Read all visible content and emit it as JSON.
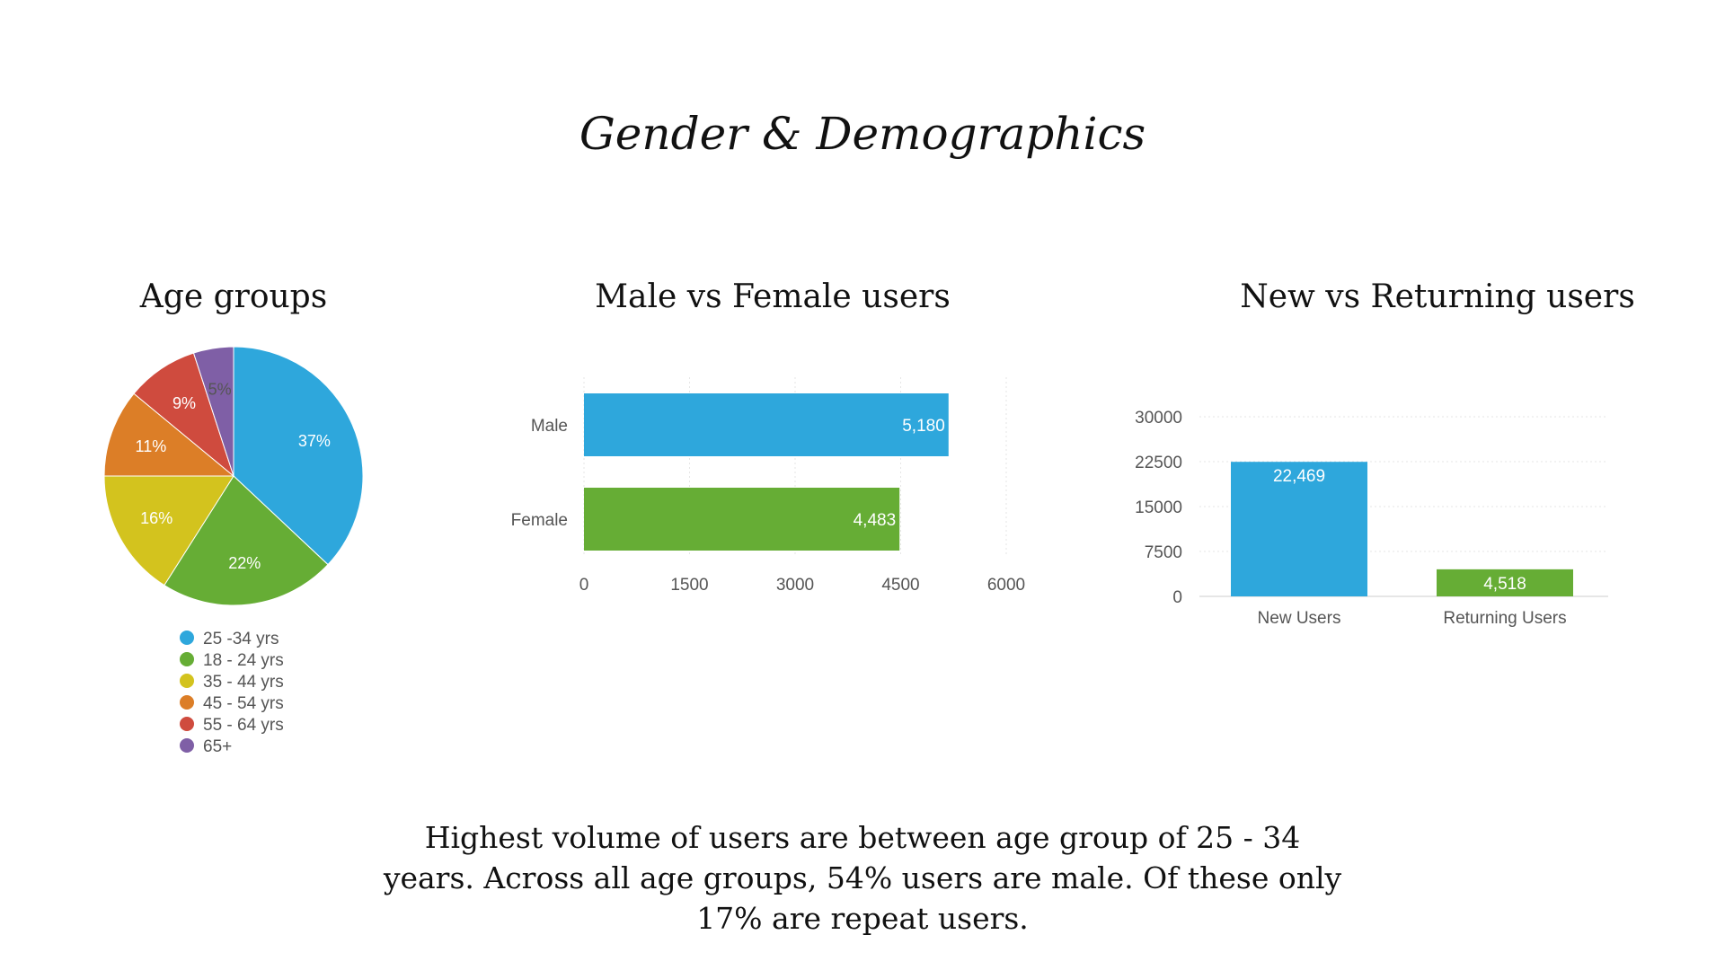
{
  "page": {
    "title": "Gender & Demographics",
    "summary": "Highest volume of users are between age group of 25 - 34 years. Across all age groups, 54% users are male. Of these only 17% are repeat users."
  },
  "colors": {
    "blue": "#2ea7dc",
    "green": "#66ad35",
    "yellow": "#d3c31e",
    "orange": "#dc7e27",
    "red": "#cf4b3e",
    "purple": "#7f5fa6"
  },
  "chart_data": [
    {
      "type": "pie",
      "title": "Age groups",
      "slices": [
        {
          "name": "25 -34 yrs",
          "value": 37,
          "label": "37%",
          "color": "#2ea7dc"
        },
        {
          "name": "18 - 24 yrs",
          "value": 22,
          "label": "22%",
          "color": "#66ad35"
        },
        {
          "name": "35 - 44 yrs",
          "value": 16,
          "label": "16%",
          "color": "#d3c31e"
        },
        {
          "name": "45 - 54 yrs",
          "value": 11,
          "label": "11%",
          "color": "#dc7e27"
        },
        {
          "name": "55 - 64 yrs",
          "value": 9,
          "label": "9%",
          "color": "#cf4b3e"
        },
        {
          "name": "65+",
          "value": 5,
          "label": "5%",
          "color": "#7f5fa6"
        }
      ],
      "legend": "bottom"
    },
    {
      "type": "bar",
      "orientation": "horizontal",
      "title": "Male vs Female users",
      "categories": [
        "Male",
        "Female"
      ],
      "values": [
        5180,
        4483
      ],
      "data_labels": [
        "5,180",
        "4,483"
      ],
      "colors": [
        "#2ea7dc",
        "#66ad35"
      ],
      "xlim": [
        0,
        6000
      ],
      "xticks": [
        "0",
        "1500",
        "3000",
        "4500",
        "6000"
      ],
      "grid": true
    },
    {
      "type": "bar",
      "title": "New vs Returning users",
      "categories": [
        "New Users",
        "Returning Users"
      ],
      "values": [
        22469,
        4518
      ],
      "data_labels": [
        "22,469",
        "4,518"
      ],
      "colors": [
        "#2ea7dc",
        "#66ad35"
      ],
      "ylim": [
        0,
        30000
      ],
      "yticks": [
        "0",
        "7500",
        "15000",
        "22500",
        "30000"
      ],
      "grid": true
    }
  ]
}
